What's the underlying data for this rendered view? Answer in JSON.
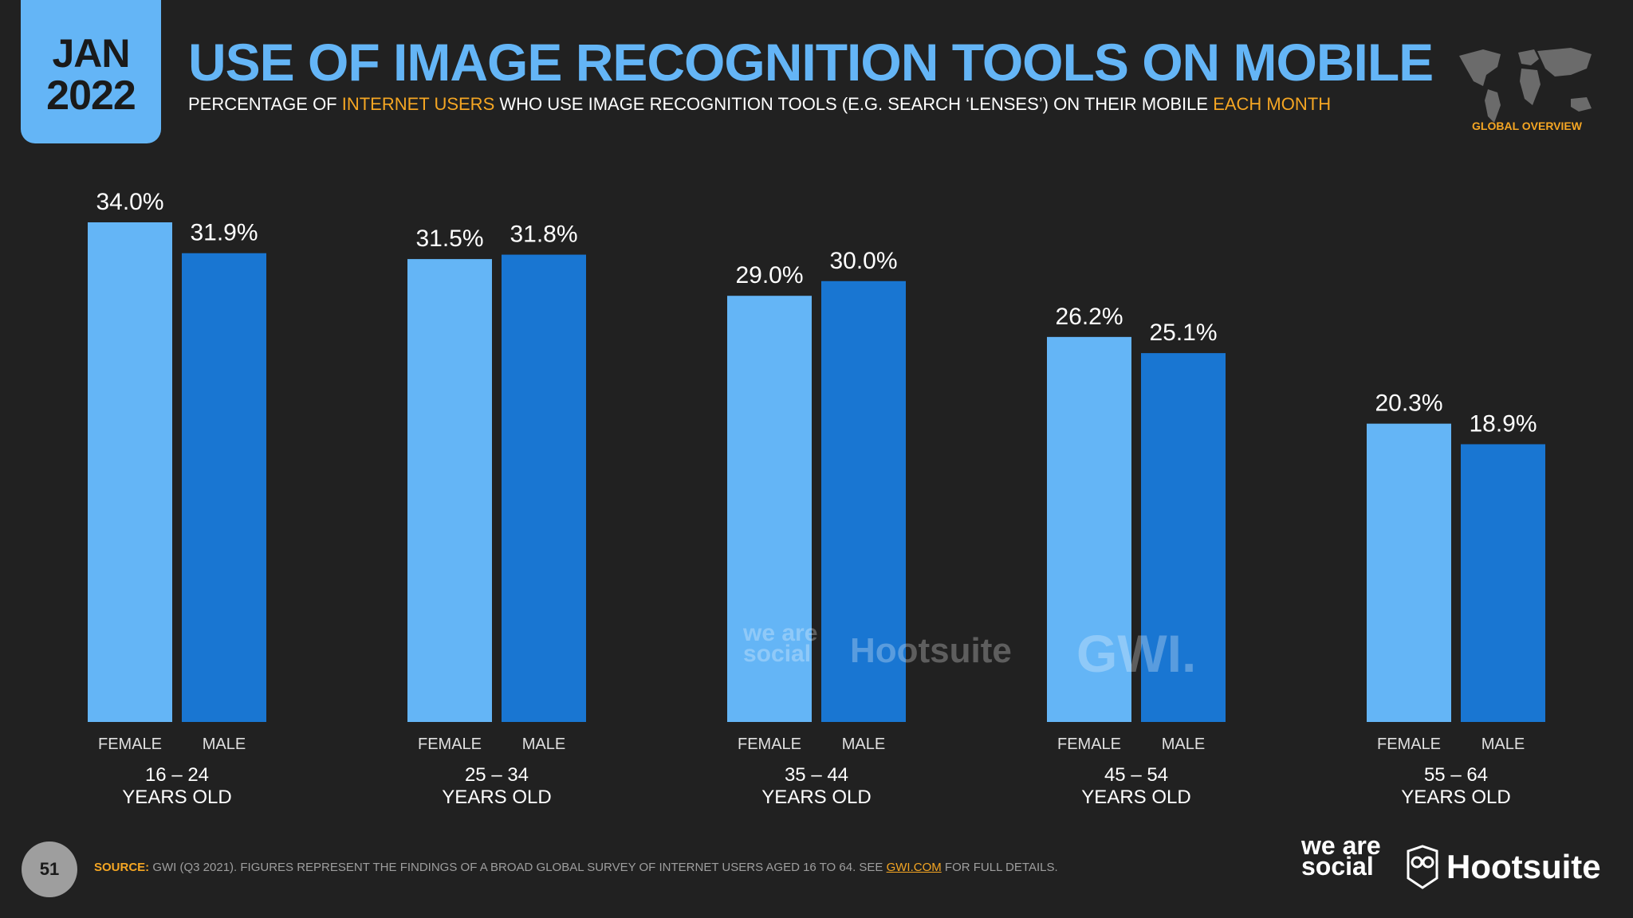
{
  "badge": {
    "month": "JAN",
    "year": "2022"
  },
  "header": {
    "title": "USE OF IMAGE RECOGNITION TOOLS ON MOBILE",
    "subtitle_parts": [
      "PERCENTAGE OF ",
      "INTERNET USERS",
      " WHO USE IMAGE RECOGNITION TOOLS (E.G. SEARCH ‘LENSES’) ON THEIR MOBILE ",
      "EACH MONTH"
    ],
    "overview_label": "GLOBAL OVERVIEW"
  },
  "colors": {
    "female": "#64b5f6",
    "male": "#1976d2",
    "accent": "#f5a623",
    "title": "#64b5f6"
  },
  "chart_data": {
    "type": "bar",
    "title": "USE OF IMAGE RECOGNITION TOOLS ON MOBILE",
    "categories": [
      "16 – 24",
      "25 – 34",
      "35 – 44",
      "45 – 54",
      "55 – 64"
    ],
    "category_suffix": "YEARS OLD",
    "series": [
      {
        "name": "FEMALE",
        "values": [
          34.0,
          31.5,
          29.0,
          26.2,
          20.3
        ]
      },
      {
        "name": "MALE",
        "values": [
          31.9,
          31.8,
          30.0,
          25.1,
          18.9
        ]
      }
    ],
    "value_format": "%",
    "ylim": [
      0,
      34
    ]
  },
  "watermarks": {
    "we_are_social": "we are social",
    "hootsuite": "Hootsuite",
    "gwi": "GWI."
  },
  "footer": {
    "page_number": "51",
    "source_label": "SOURCE:",
    "source_text_1": " GWI (Q3 2021). FIGURES REPRESENT THE FINDINGS OF A BROAD GLOBAL SURVEY OF INTERNET USERS AGED 16 TO 64. SEE ",
    "source_link": "GWI.COM",
    "source_text_2": " FOR FULL DETAILS.",
    "logo_we_are_social": "we are social",
    "logo_hootsuite": "Hootsuite"
  }
}
